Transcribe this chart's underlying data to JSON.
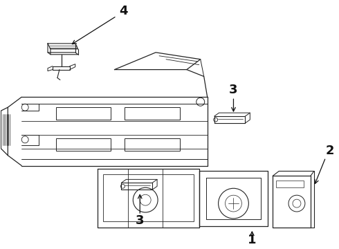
{
  "bg_color": "#ffffff",
  "line_color": "#222222",
  "text_color": "#111111",
  "fig_width": 4.9,
  "fig_height": 3.6,
  "dpi": 100
}
